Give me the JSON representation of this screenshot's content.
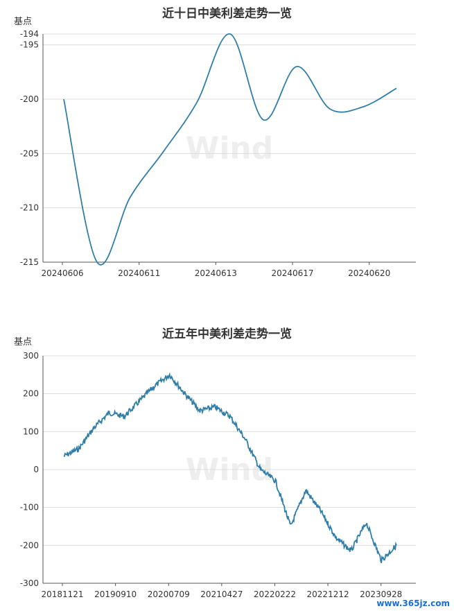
{
  "chart_data": [
    {
      "type": "line",
      "title": "近十日中美利差走势一览",
      "ylabel": "基点",
      "ylim": [
        -215,
        -194
      ],
      "y_ticks": [
        -215,
        -210,
        -205,
        -200,
        -195,
        -194
      ],
      "x_ticks": [
        "20240606",
        "20240611",
        "20240613",
        "20240617",
        "20240620"
      ],
      "watermark": "Wind",
      "x": [
        "20240606",
        "20240607",
        "20240611",
        "20240612",
        "20240613",
        "20240614",
        "20240617",
        "20240618",
        "20240619",
        "20240620",
        "20240621"
      ],
      "series": [
        {
          "values": [
            -200.0,
            -215.0,
            -209.0,
            -204.8,
            -200.3,
            -194.0,
            -201.9,
            -197.0,
            -200.9,
            -200.7,
            -199.0
          ]
        }
      ]
    },
    {
      "type": "line",
      "title": "近五年中美利差走势一览",
      "ylabel": "基点",
      "ylim": [
        -300,
        300
      ],
      "y_ticks": [
        -300,
        -200,
        -100,
        0,
        100,
        200,
        300
      ],
      "x_ticks": [
        "20181121",
        "20190910",
        "20200709",
        "20210427",
        "20220222",
        "20221212",
        "20230928"
      ],
      "watermark": "Wind",
      "x": [
        "20181121",
        "20190301",
        "20190601",
        "20190910",
        "20191201",
        "20200301",
        "20200709",
        "20201001",
        "20210101",
        "20210427",
        "20210801",
        "20211101",
        "20220222",
        "20220415",
        "20220701",
        "20220901",
        "20221212",
        "20230301",
        "20230601",
        "20230928",
        "20231201",
        "20240301",
        "20240621"
      ],
      "series": [
        {
          "values": [
            35,
            55,
            110,
            150,
            140,
            180,
            220,
            250,
            200,
            155,
            165,
            140,
            80,
            0,
            -30,
            -150,
            -55,
            -110,
            -180,
            -215,
            -140,
            -240,
            -200
          ]
        }
      ]
    }
  ],
  "footer": {
    "site_mark": "www.365jz.com"
  }
}
